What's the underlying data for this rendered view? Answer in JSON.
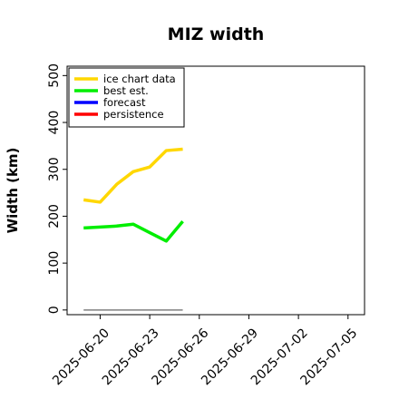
{
  "chart_data": {
    "type": "line",
    "title": "MIZ width",
    "ylabel": "Width (km)",
    "xlabel": "",
    "ylim": [
      -10,
      520
    ],
    "xlim": [
      "2025-06-18",
      "2025-07-06"
    ],
    "yticks": [
      0,
      100,
      200,
      300,
      400,
      500
    ],
    "xticks": [
      {
        "date": "2025-06-20",
        "label": "2025-06-20",
        "color": "#000000"
      },
      {
        "date": "2025-06-23",
        "label": "2025-06-23",
        "color": "#000000"
      },
      {
        "date": "2025-06-26",
        "label": "2025-06-26",
        "color": "#228B22"
      },
      {
        "date": "2025-06-29",
        "label": "2025-06-29",
        "color": "#000000"
      },
      {
        "date": "2025-07-02",
        "label": "2025-07-02",
        "color": "#000000"
      },
      {
        "date": "2025-07-05",
        "label": "2025-07-05",
        "color": "#000000"
      }
    ],
    "grid": false,
    "legend_position": "top-left",
    "series": [
      {
        "name": "ice chart data",
        "color": "#FFD700",
        "points": [
          [
            "2025-06-19",
            235
          ],
          [
            "2025-06-20",
            230
          ],
          [
            "2025-06-21",
            268
          ],
          [
            "2025-06-22",
            295
          ],
          [
            "2025-06-23",
            305
          ],
          [
            "2025-06-24",
            340
          ],
          [
            "2025-06-25",
            343
          ]
        ]
      },
      {
        "name": "best est.",
        "color": "#00EE00",
        "points": [
          [
            "2025-06-19",
            175
          ],
          [
            "2025-06-20",
            177
          ],
          [
            "2025-06-21",
            179
          ],
          [
            "2025-06-22",
            183
          ],
          [
            "2025-06-23",
            165
          ],
          [
            "2025-06-24",
            147
          ],
          [
            "2025-06-25",
            189
          ]
        ]
      },
      {
        "name": "forecast",
        "color": "#0000FF",
        "points": []
      },
      {
        "name": "persistence",
        "color": "#FF0000",
        "points": []
      }
    ],
    "reference_line": {
      "color": "#808080",
      "points": [
        [
          "2025-06-19",
          0
        ],
        [
          "2025-06-25",
          0
        ]
      ]
    }
  }
}
